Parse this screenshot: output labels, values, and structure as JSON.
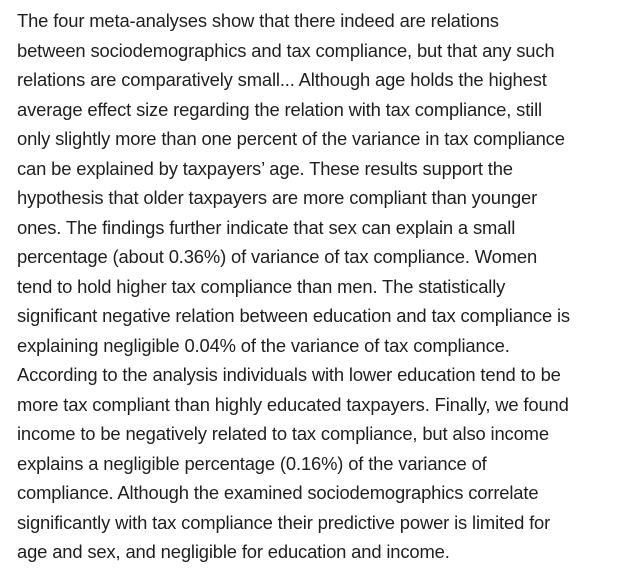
{
  "document": {
    "lines": [
      "The four meta-analyses show that there indeed are relations",
      "between sociodemographics and tax compliance, but that any such",
      "relations are comparatively small... Although age holds the highest",
      "average effect size regarding the relation with tax compliance, still",
      "only slightly more than one percent of the variance in tax compliance",
      "can be explained by taxpayers’ age. These results support the",
      "hypothesis that older taxpayers are more compliant than younger",
      "ones. The findings further indicate that sex can explain a small",
      "percentage (about 0.36%) of variance of tax compliance. Women",
      "tend to hold higher tax compliance than men. The statistically",
      "significant negative relation between education and tax compliance is",
      "explaining negligible 0.04% of the variance of tax compliance.",
      "According to the analysis individuals with lower education tend to be",
      "more tax compliant than highly educated taxpayers. Finally, we found",
      "income to be negatively related to tax compliance, but also income",
      "explains a negligible percentage (0.16%) of the variance of",
      "compliance. Although the examined sociodemographics correlate",
      "significantly with tax compliance their predictive power is limited for",
      "age and sex, and negligible for education and income."
    ]
  }
}
